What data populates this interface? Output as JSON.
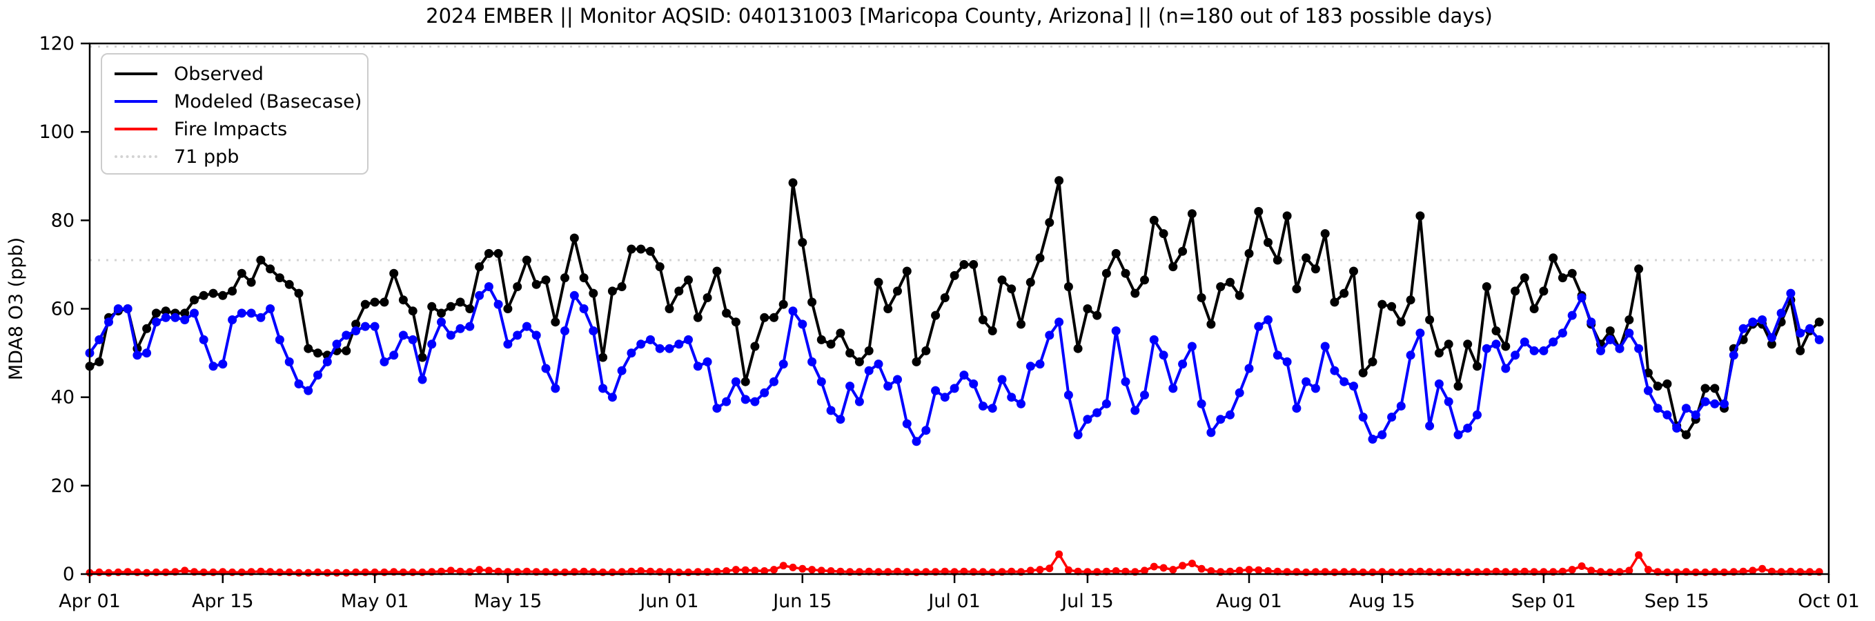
{
  "chart_data": {
    "type": "line",
    "title": "2024 EMBER || Monitor AQSID: 040131003 [Maricopa County, Arizona] || (n=180 out of 183 possible days)",
    "xlabel": "",
    "ylabel": "MDA8 O3 (ppb)",
    "ylim": [
      0,
      120
    ],
    "yticks": [
      0,
      20,
      40,
      60,
      80,
      100,
      120
    ],
    "x_unit": "day index from Apr 01",
    "total_days": 183,
    "x_start_label": "Apr 01",
    "x_end_label": "Oct 01",
    "grid": false,
    "legend_position": "upper left",
    "xticks": [
      {
        "day": 0,
        "label": "Apr 01"
      },
      {
        "day": 14,
        "label": "Apr 15"
      },
      {
        "day": 30,
        "label": "May 01"
      },
      {
        "day": 44,
        "label": "May 15"
      },
      {
        "day": 61,
        "label": "Jun 01"
      },
      {
        "day": 75,
        "label": "Jun 15"
      },
      {
        "day": 91,
        "label": "Jul 01"
      },
      {
        "day": 105,
        "label": "Jul 15"
      },
      {
        "day": 122,
        "label": "Aug 01"
      },
      {
        "day": 136,
        "label": "Aug 15"
      },
      {
        "day": 153,
        "label": "Sep 01"
      },
      {
        "day": 167,
        "label": "Sep 15"
      },
      {
        "day": 183,
        "label": "Oct 01"
      }
    ],
    "reference_lines": [
      {
        "value": 71,
        "label": "71 ppb",
        "color": "#d3d3d3",
        "style": "dotted"
      },
      {
        "value": 119.3,
        "label": "",
        "color": "#d3d3d3",
        "style": "dotted"
      }
    ],
    "threshold": {
      "label": "71 ppb",
      "value": 71,
      "color": "#d3d3d3",
      "style": "dotted"
    },
    "series": [
      {
        "name": "Observed",
        "color": "#000000",
        "values": [
          47,
          48,
          58,
          59.5,
          60,
          51,
          55.5,
          59,
          59.5,
          59,
          59,
          62,
          63,
          63.5,
          63,
          64,
          68,
          66,
          71,
          69,
          67,
          65.5,
          63.5,
          51,
          50,
          49.5,
          50.5,
          50.5,
          56.5,
          61,
          61.5,
          61.5,
          68,
          62,
          59.5,
          49,
          60.5,
          59,
          60.5,
          61.5,
          60,
          69.5,
          72.5,
          72.5,
          60,
          65,
          71,
          65.5,
          66.5,
          57,
          67,
          76,
          67,
          63.5,
          49,
          64,
          65,
          73.5,
          73.5,
          73,
          69.5,
          60,
          64,
          66.5,
          58,
          62.5,
          68.5,
          59,
          57,
          43.5,
          51.5,
          58,
          58,
          61,
          88.5,
          75,
          61.5,
          53,
          52,
          54.5,
          50,
          48,
          50.5,
          66,
          60,
          64,
          68.5,
          48,
          50.5,
          58.5,
          62.5,
          67.5,
          70,
          70,
          57.5,
          55,
          66.5,
          64.5,
          56.5,
          66,
          71.5,
          79.5,
          89,
          65,
          51,
          60,
          58.5,
          68,
          72.5,
          68,
          63.5,
          66.5,
          80,
          77,
          69.5,
          73,
          81.5,
          62.5,
          56.5,
          65,
          66,
          63,
          72.5,
          82,
          75,
          71,
          81,
          64.5,
          71.5,
          69,
          77,
          61.5,
          63.5,
          68.5,
          45.5,
          48,
          61,
          60.5,
          57,
          62,
          81,
          57.5,
          50,
          52,
          42.5,
          52,
          47,
          65,
          55,
          51.5,
          64,
          67,
          60,
          64,
          71.5,
          67,
          68,
          63,
          56.5,
          52,
          55,
          51,
          57.5,
          69,
          45.5,
          42.5,
          43,
          33.5,
          31.5,
          35,
          42,
          42,
          37.5,
          51,
          53,
          56.5,
          56.5,
          52,
          57,
          62,
          50.5,
          55,
          57
        ]
      },
      {
        "name": "Modeled (Basecase)",
        "color": "#0000ff",
        "values": [
          50,
          53,
          57,
          60,
          60,
          49.5,
          50,
          57,
          58,
          58,
          57.5,
          59,
          53,
          47,
          47.5,
          57.5,
          59,
          59,
          58,
          60,
          53,
          48,
          43,
          41.5,
          45,
          48,
          52,
          54,
          55,
          56,
          56,
          48,
          49.5,
          54,
          53,
          44,
          52,
          57,
          54,
          55.5,
          56,
          63,
          65,
          61,
          52,
          54,
          56,
          54,
          46.5,
          42,
          55,
          63,
          60,
          55,
          42,
          40,
          46,
          50,
          52,
          53,
          51,
          51,
          52,
          53,
          47,
          48,
          37.5,
          39,
          43.5,
          39.5,
          39,
          41,
          43.5,
          47.5,
          59.5,
          56.5,
          48,
          43.5,
          37,
          35,
          42.5,
          39,
          46,
          47.5,
          42.5,
          44,
          34,
          30,
          32.5,
          41.5,
          40,
          42,
          45,
          43,
          38,
          37.5,
          44,
          40,
          38.5,
          47,
          47.5,
          54,
          57,
          40.5,
          31.5,
          35,
          36.5,
          38.5,
          55,
          43.5,
          37,
          40.5,
          53,
          49.5,
          42,
          47.5,
          51.5,
          38.5,
          32,
          35,
          36,
          41,
          46.5,
          56,
          57.5,
          49.5,
          48,
          37.5,
          43.5,
          42,
          51.5,
          46,
          43.5,
          42.5,
          35.5,
          30.5,
          31.5,
          35.5,
          38,
          49.5,
          54.5,
          33.5,
          43,
          39,
          31.5,
          33,
          36,
          51,
          52,
          46.5,
          49.5,
          52.5,
          50.5,
          50.5,
          52.5,
          54.5,
          58.5,
          62.5,
          57,
          50.5,
          53,
          51,
          54.5,
          51,
          41.5,
          37.5,
          36,
          33,
          37.5,
          36,
          39,
          38.5,
          38.5,
          49.5,
          55.5,
          57,
          57.5,
          53.5,
          59,
          63.5,
          54.5,
          55.5,
          53
        ]
      },
      {
        "name": "Fire Impacts",
        "color": "#ff0000",
        "values": [
          0.3,
          0.4,
          0.3,
          0.4,
          0.5,
          0.4,
          0.3,
          0.4,
          0.4,
          0.5,
          0.8,
          0.5,
          0.4,
          0.4,
          0.5,
          0.4,
          0.4,
          0.5,
          0.6,
          0.5,
          0.4,
          0.4,
          0.3,
          0.3,
          0.4,
          0.3,
          0.3,
          0.3,
          0.4,
          0.4,
          0.4,
          0.4,
          0.5,
          0.4,
          0.4,
          0.4,
          0.5,
          0.6,
          0.8,
          0.6,
          0.5,
          1.0,
          0.8,
          0.6,
          0.5,
          0.5,
          0.6,
          0.5,
          0.5,
          0.4,
          0.4,
          0.5,
          0.6,
          0.5,
          0.4,
          0.4,
          0.5,
          0.6,
          0.7,
          0.6,
          0.5,
          0.5,
          0.4,
          0.4,
          0.5,
          0.5,
          0.6,
          0.7,
          1.0,
          0.9,
          0.8,
          0.7,
          1.0,
          1.9,
          1.5,
          1.2,
          1.0,
          0.8,
          0.7,
          0.6,
          0.5,
          0.5,
          0.6,
          0.5,
          0.5,
          0.6,
          0.5,
          0.4,
          0.5,
          0.5,
          0.6,
          0.5,
          0.6,
          0.5,
          0.5,
          0.4,
          0.5,
          0.6,
          0.5,
          0.8,
          1.0,
          1.3,
          4.5,
          0.9,
          0.6,
          0.5,
          0.5,
          0.6,
          0.7,
          0.6,
          0.5,
          0.8,
          1.7,
          1.4,
          1.0,
          1.9,
          2.4,
          1.2,
          0.7,
          0.5,
          0.6,
          0.8,
          1.0,
          0.9,
          0.7,
          0.6,
          0.5,
          0.5,
          0.4,
          0.5,
          0.5,
          0.4,
          0.5,
          0.5,
          0.4,
          0.4,
          0.5,
          0.4,
          0.4,
          0.5,
          0.6,
          0.5,
          0.4,
          0.5,
          0.4,
          0.4,
          0.5,
          0.5,
          0.6,
          0.5,
          0.5,
          0.6,
          0.5,
          0.5,
          0.5,
          0.6,
          1.0,
          1.8,
          0.8,
          0.5,
          0.4,
          0.5,
          0.8,
          4.3,
          1.0,
          0.5,
          0.4,
          0.4,
          0.5,
          0.4,
          0.4,
          0.5,
          0.4,
          0.5,
          0.6,
          0.8,
          1.2,
          0.6,
          0.5,
          0.6,
          0.5,
          0.5,
          0.5
        ]
      }
    ]
  }
}
